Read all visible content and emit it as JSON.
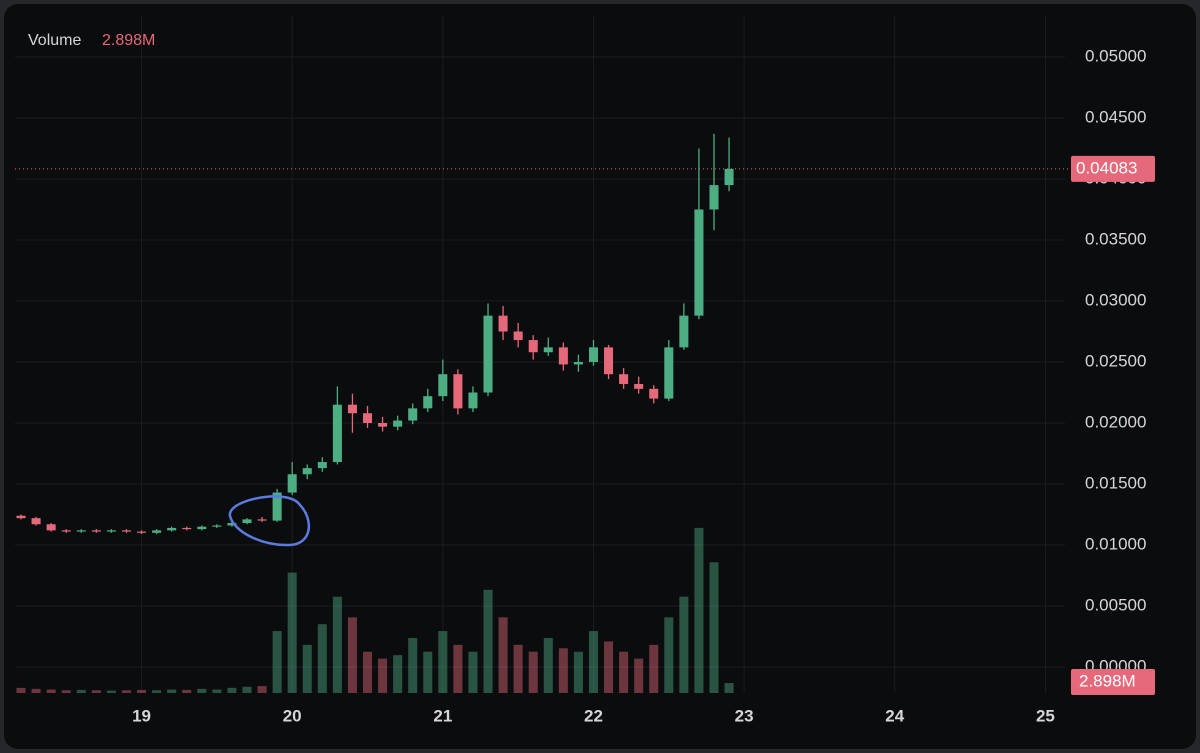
{
  "chart_data": {
    "type": "candlestick",
    "volume_title": "Volume",
    "volume_value_label": "2.898M",
    "last_price": 0.04083,
    "up_color": "#4dae84",
    "down_color": "#e5697a",
    "x": [
      18.2,
      18.3,
      18.4,
      18.5,
      18.6,
      18.7,
      18.8,
      18.9,
      19.0,
      19.1,
      19.2,
      19.3,
      19.4,
      19.5,
      19.6,
      19.7,
      19.8,
      19.9,
      20.0,
      20.1,
      20.2,
      20.3,
      20.4,
      20.5,
      20.6,
      20.7,
      20.8,
      20.9,
      21.0,
      21.1,
      21.2,
      21.3,
      21.4,
      21.5,
      21.6,
      21.7,
      21.8,
      21.9,
      22.0,
      22.1,
      22.2,
      22.3,
      22.4,
      22.5,
      22.6,
      22.7,
      22.8,
      22.9
    ],
    "open": [
      0.0124,
      0.0122,
      0.0117,
      0.0112,
      0.0111,
      0.0112,
      0.0111,
      0.0112,
      0.0111,
      0.011,
      0.0112,
      0.0114,
      0.0113,
      0.0115,
      0.0116,
      0.0118,
      0.0121,
      0.012,
      0.0143,
      0.0158,
      0.0163,
      0.0168,
      0.0215,
      0.0208,
      0.02,
      0.0197,
      0.0202,
      0.0212,
      0.0222,
      0.024,
      0.0212,
      0.0225,
      0.0288,
      0.0275,
      0.0268,
      0.0258,
      0.0262,
      0.0248,
      0.025,
      0.0262,
      0.024,
      0.0232,
      0.0228,
      0.022,
      0.0262,
      0.0288,
      0.0375,
      0.0395
    ],
    "high": [
      0.0125,
      0.0123,
      0.0118,
      0.0113,
      0.0113,
      0.0113,
      0.0113,
      0.0113,
      0.0112,
      0.0113,
      0.0115,
      0.0115,
      0.0116,
      0.0117,
      0.0119,
      0.0122,
      0.0123,
      0.0146,
      0.0168,
      0.0166,
      0.0172,
      0.023,
      0.0224,
      0.0214,
      0.0205,
      0.0206,
      0.0216,
      0.0228,
      0.0252,
      0.0244,
      0.023,
      0.0298,
      0.0296,
      0.0282,
      0.0272,
      0.027,
      0.0266,
      0.0256,
      0.0268,
      0.0264,
      0.0245,
      0.0238,
      0.0231,
      0.0268,
      0.0298,
      0.0425,
      0.0437,
      0.0434
    ],
    "low": [
      0.0121,
      0.0116,
      0.0111,
      0.011,
      0.011,
      0.011,
      0.011,
      0.011,
      0.0109,
      0.0109,
      0.0111,
      0.0112,
      0.0112,
      0.0114,
      0.0115,
      0.0117,
      0.0119,
      0.0119,
      0.0141,
      0.0154,
      0.016,
      0.0166,
      0.0192,
      0.0196,
      0.0193,
      0.0194,
      0.0199,
      0.0209,
      0.0218,
      0.0207,
      0.0209,
      0.0222,
      0.0268,
      0.0262,
      0.0252,
      0.0255,
      0.0243,
      0.0242,
      0.0247,
      0.0236,
      0.0228,
      0.0224,
      0.0216,
      0.0218,
      0.026,
      0.0285,
      0.0358,
      0.039
    ],
    "close": [
      0.0122,
      0.0117,
      0.0112,
      0.0111,
      0.0112,
      0.0111,
      0.0112,
      0.0111,
      0.011,
      0.0112,
      0.0114,
      0.0113,
      0.0115,
      0.0116,
      0.0118,
      0.0121,
      0.012,
      0.0143,
      0.0158,
      0.0163,
      0.0168,
      0.0215,
      0.0208,
      0.02,
      0.0197,
      0.0202,
      0.0212,
      0.0222,
      0.024,
      0.0212,
      0.0225,
      0.0288,
      0.0275,
      0.0268,
      0.0258,
      0.0262,
      0.0248,
      0.025,
      0.0262,
      0.024,
      0.0232,
      0.0228,
      0.022,
      0.0262,
      0.0288,
      0.0375,
      0.0395,
      0.04083
    ],
    "volume": [
      1.5,
      1.2,
      1.0,
      0.8,
      0.9,
      0.8,
      0.7,
      0.8,
      0.9,
      0.8,
      1.0,
      0.9,
      1.2,
      1.0,
      1.5,
      1.8,
      2.0,
      18,
      35,
      14,
      20,
      28,
      22,
      12,
      10,
      11,
      16,
      12,
      18,
      14,
      12,
      30,
      22,
      14,
      12,
      16,
      13,
      12,
      18,
      15,
      12,
      10,
      14,
      22,
      28,
      48,
      38,
      2.898
    ],
    "volume_lim": [
      0,
      50
    ],
    "xlim": [
      18.16,
      25.13
    ],
    "xticks": [
      19,
      20,
      21,
      22,
      23,
      24,
      25
    ],
    "ylim": [
      0,
      0.05
    ],
    "yticks": [
      {
        "value": 0,
        "label": "0.00000"
      },
      {
        "value": 0.005,
        "label": "0.00500"
      },
      {
        "value": 0.01,
        "label": "0.01000"
      },
      {
        "value": 0.015,
        "label": "0.01500"
      },
      {
        "value": 0.02,
        "label": "0.02000"
      },
      {
        "value": 0.025,
        "label": "0.02500"
      },
      {
        "value": 0.03,
        "label": "0.03000"
      },
      {
        "value": 0.035,
        "label": "0.03500"
      },
      {
        "value": 0.04,
        "label": "0.04000"
      },
      {
        "value": 0.045,
        "label": "0.04500"
      },
      {
        "value": 0.05,
        "label": "0.05000"
      }
    ],
    "grid": true
  }
}
